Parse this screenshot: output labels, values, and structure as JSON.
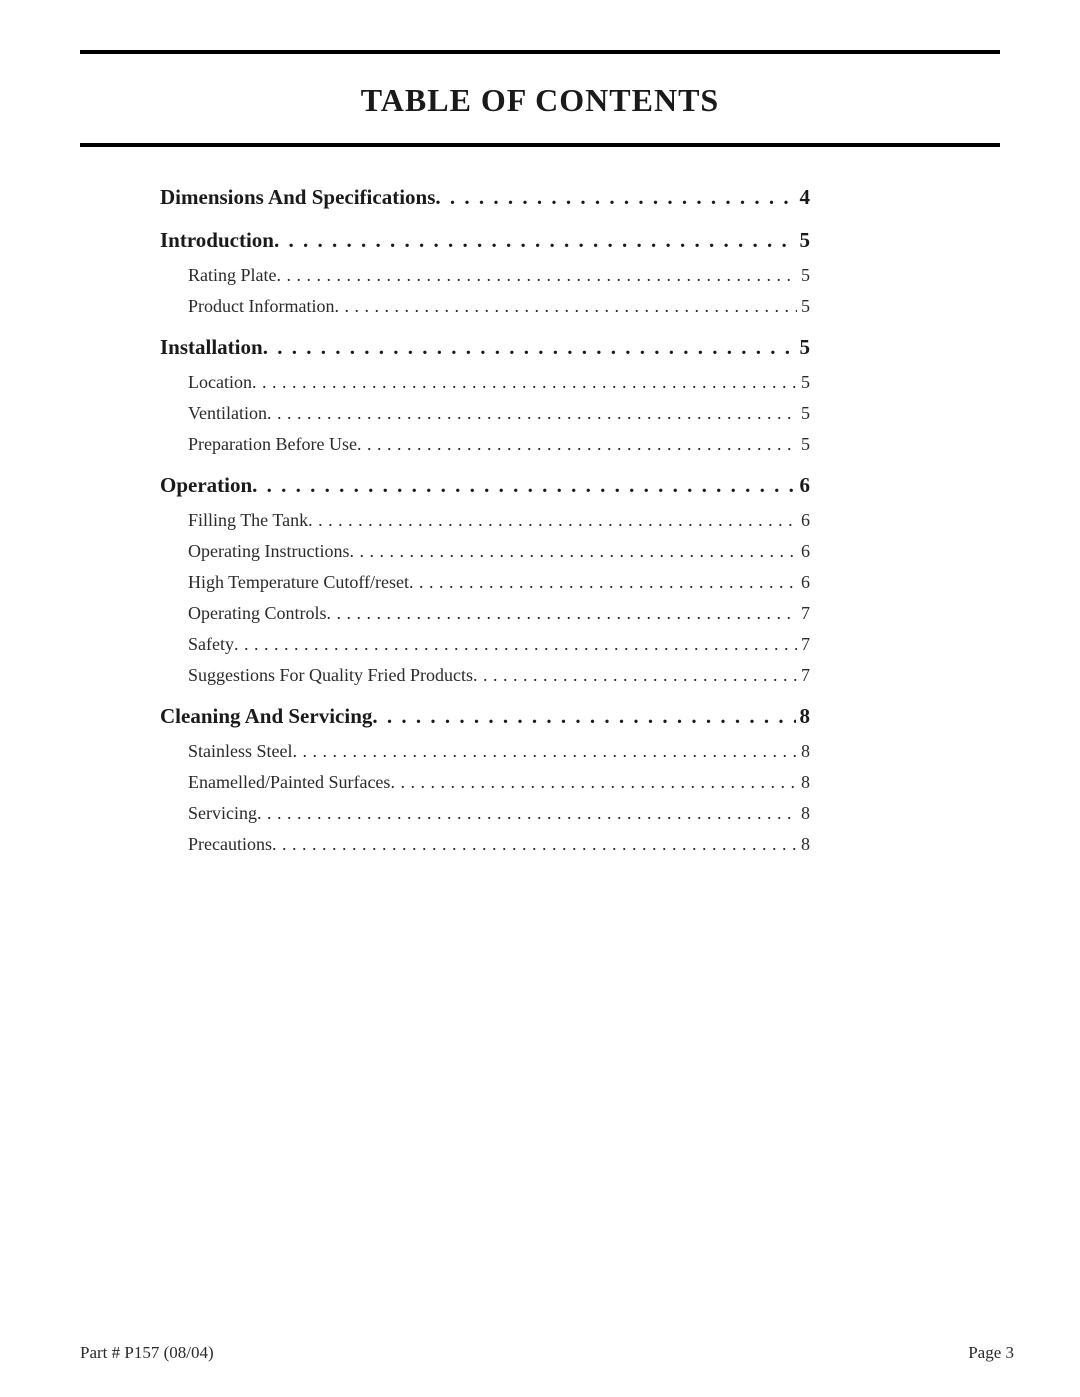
{
  "title": "TABLE OF CONTENTS",
  "colors": {
    "text": "#1a1a1a",
    "rule": "#000000",
    "background": "#ffffff"
  },
  "typography": {
    "title_fontsize": 32,
    "level1_fontsize": 21,
    "level2_fontsize": 18,
    "footer_fontsize": 17,
    "font_family": "Garamond / serif"
  },
  "toc": [
    {
      "label": "Dimensions And Specifications",
      "page": "4",
      "level": 1
    },
    {
      "label": "Introduction",
      "page": "5",
      "level": 1
    },
    {
      "label": "Rating Plate",
      "page": "5",
      "level": 2
    },
    {
      "label": "Product Information",
      "page": "5",
      "level": 2
    },
    {
      "label": "Installation",
      "page": "5",
      "level": 1
    },
    {
      "label": "Location",
      "page": "5",
      "level": 2
    },
    {
      "label": "Ventilation",
      "page": "5",
      "level": 2
    },
    {
      "label": "Preparation Before Use",
      "page": "5",
      "level": 2
    },
    {
      "label": "Operation",
      "page": "6",
      "level": 1
    },
    {
      "label": "Filling The Tank",
      "page": "6",
      "level": 2
    },
    {
      "label": "Operating Instructions",
      "page": "6",
      "level": 2
    },
    {
      "label": "High Temperature Cutoff/reset",
      "page": "6",
      "level": 2
    },
    {
      "label": "Operating Controls",
      "page": "7",
      "level": 2
    },
    {
      "label": "Safety",
      "page": "7",
      "level": 2
    },
    {
      "label": "Suggestions For Quality Fried Products",
      "page": "7",
      "level": 2
    },
    {
      "label": "Cleaning And Servicing",
      "page": "8",
      "level": 1
    },
    {
      "label": "Stainless Steel",
      "page": "8",
      "level": 2
    },
    {
      "label": "Enamelled/Painted Surfaces",
      "page": "8",
      "level": 2
    },
    {
      "label": "Servicing",
      "page": "8",
      "level": 2
    },
    {
      "label": "Precautions",
      "page": "8",
      "level": 2
    }
  ],
  "footer": {
    "left": "Part # P157 (08/04)",
    "right": "Page 3"
  }
}
